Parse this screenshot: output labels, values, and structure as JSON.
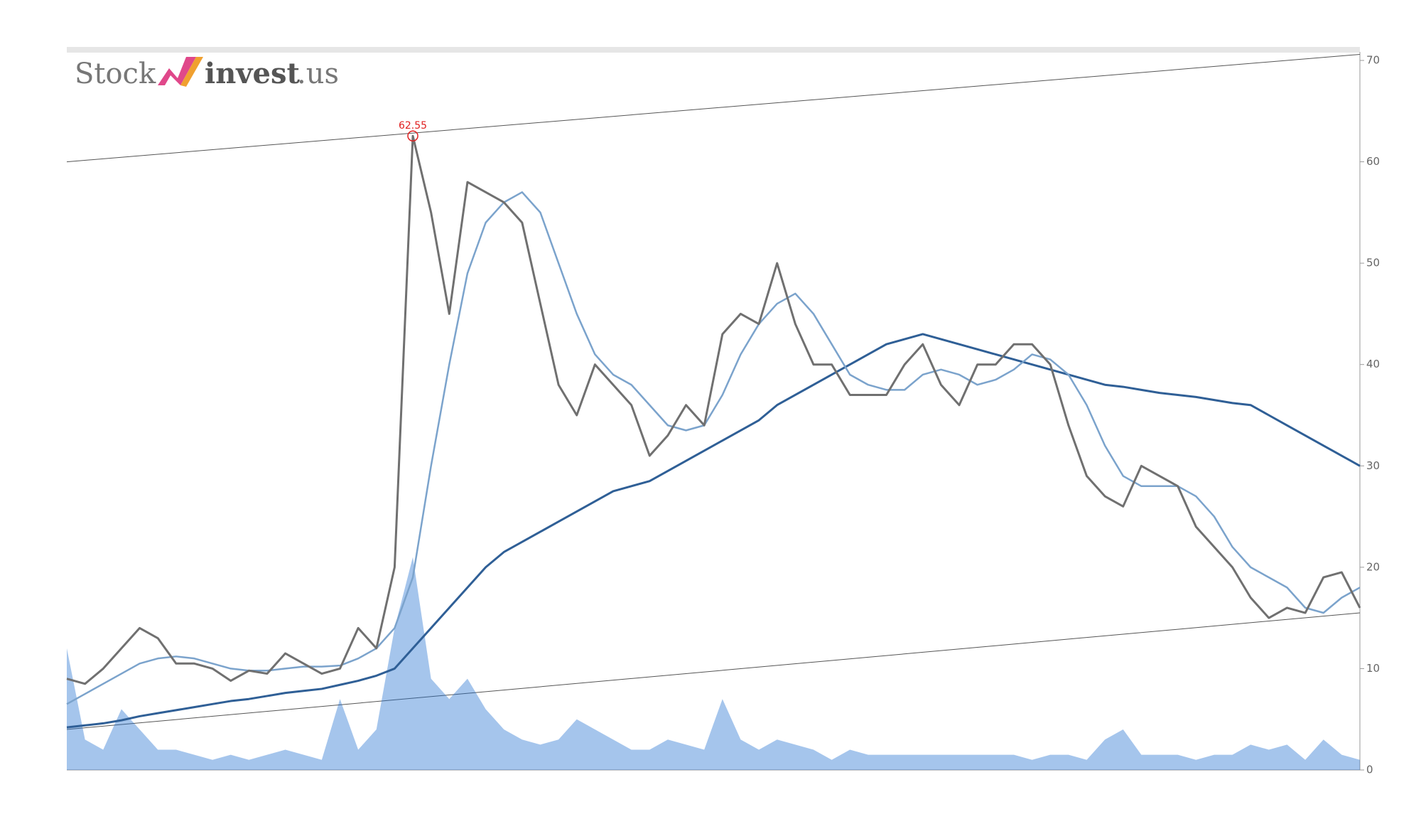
{
  "logo": {
    "left": "Stock",
    "bold": "invest",
    "right": ".us"
  },
  "chart_data": {
    "type": "line",
    "ylim": [
      0,
      70
    ],
    "yticks": [
      0,
      10,
      20,
      30,
      40,
      50,
      60,
      70
    ],
    "series": [
      {
        "color": "#1f6fd0",
        "style": "area",
        "opacity": 0.4,
        "values": [
          12,
          3,
          2,
          6,
          4,
          2,
          2,
          1.5,
          1,
          1.5,
          1,
          1.5,
          2,
          1.5,
          1,
          7,
          2,
          4,
          14,
          21,
          9,
          7,
          9,
          6,
          4,
          3,
          2.5,
          3,
          5,
          4,
          3,
          2,
          2,
          3,
          2.5,
          2,
          7,
          3,
          2,
          3,
          2.5,
          2,
          1,
          2,
          1.5,
          1.5,
          1.5,
          1.5,
          1.5,
          1.5,
          1.5,
          1.5,
          1.5,
          1,
          1.5,
          1.5,
          1,
          3,
          4,
          1.5,
          1.5,
          1.5,
          1,
          1.5,
          1.5,
          2.5,
          2,
          2.5,
          1,
          3,
          1.5,
          1
        ]
      },
      {
        "color": "#2f5f96",
        "style": "line",
        "width": 3,
        "values": [
          4.2,
          4.4,
          4.6,
          4.9,
          5.3,
          5.6,
          5.9,
          6.2,
          6.5,
          6.8,
          7.0,
          7.3,
          7.6,
          7.8,
          8.0,
          8.4,
          8.8,
          9.3,
          10,
          12,
          14,
          16,
          18,
          20,
          21.5,
          22.5,
          23.5,
          24.5,
          25.5,
          26.5,
          27.5,
          28,
          28.5,
          29.5,
          30.5,
          31.5,
          32.5,
          33.5,
          34.5,
          36,
          37,
          38,
          39,
          40,
          41,
          42,
          42.5,
          43,
          42.5,
          42,
          41.5,
          41,
          40.5,
          40,
          39.5,
          39,
          38.5,
          38,
          37.8,
          37.5,
          37.2,
          37,
          36.8,
          36.5,
          36.2,
          36,
          35,
          34,
          33,
          32,
          31,
          30
        ]
      },
      {
        "color": "#7ba3cc",
        "style": "line",
        "width": 2.5,
        "values": [
          6.5,
          7.5,
          8.5,
          9.5,
          10.5,
          11,
          11.2,
          11,
          10.5,
          10,
          9.8,
          9.8,
          10,
          10.2,
          10.2,
          10.3,
          11,
          12,
          14,
          19,
          30,
          40,
          49,
          54,
          56,
          57,
          55,
          50,
          45,
          41,
          39,
          38,
          36,
          34,
          33.5,
          34,
          37,
          41,
          44,
          46,
          47,
          45,
          42,
          39,
          38,
          37.5,
          37.5,
          39,
          39.5,
          39,
          38,
          38.5,
          39.5,
          41,
          40.5,
          39,
          36,
          32,
          29,
          28,
          28,
          28,
          27,
          25,
          22,
          20,
          19,
          18,
          16,
          15.5,
          17,
          18
        ]
      },
      {
        "color": "#707070",
        "style": "line",
        "width": 3,
        "values": [
          9,
          8.5,
          10,
          12,
          14,
          13,
          10.5,
          10.5,
          10,
          8.8,
          9.8,
          9.5,
          11.5,
          10.5,
          9.5,
          10,
          14,
          12,
          20,
          62.55,
          55,
          45,
          58,
          57,
          56,
          54,
          46,
          38,
          35,
          40,
          38,
          36,
          31,
          33,
          36,
          34,
          43,
          45,
          44,
          50,
          44,
          40,
          40,
          37,
          37,
          37,
          40,
          42,
          38,
          36,
          40,
          40,
          42,
          42,
          40,
          34,
          29,
          27,
          26,
          30,
          29,
          28,
          24,
          22,
          20,
          17,
          15,
          16,
          15.5,
          19,
          19.5,
          16
        ]
      }
    ],
    "peak_label": {
      "series": 3,
      "index": 19,
      "color": "#e02020"
    },
    "trend_lines": [
      {
        "from": [
          0,
          60
        ],
        "to": [
          71,
          70.6
        ],
        "color": "#555"
      },
      {
        "from": [
          0,
          4
        ],
        "to": [
          71,
          15.5
        ],
        "color": "#555"
      }
    ]
  }
}
